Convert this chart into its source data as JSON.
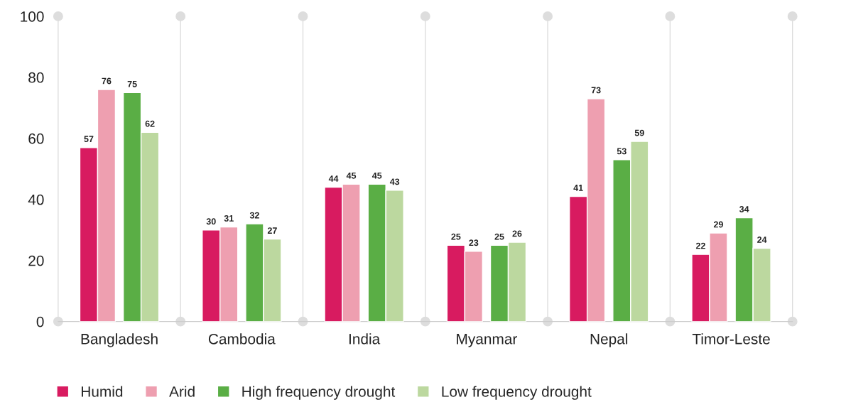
{
  "chart_data": {
    "type": "bar",
    "categories": [
      "Bangladesh",
      "Cambodia",
      "India",
      "Myanmar",
      "Nepal",
      "Timor-Leste"
    ],
    "series": [
      {
        "name": "Humid",
        "color": "#d81b60",
        "values": [
          57,
          30,
          44,
          25,
          41,
          22
        ]
      },
      {
        "name": "Arid",
        "color": "#ee9fb0",
        "values": [
          76,
          31,
          45,
          23,
          73,
          29
        ]
      },
      {
        "name": "High frequency drought",
        "color": "#5aae45",
        "values": [
          75,
          32,
          45,
          25,
          53,
          34
        ]
      },
      {
        "name": "Low frequency drought",
        "color": "#bcd89f",
        "values": [
          62,
          27,
          43,
          26,
          59,
          24
        ]
      }
    ],
    "ylim": [
      0,
      100
    ],
    "yticks": [
      0,
      20,
      40,
      60,
      80,
      100
    ],
    "data_labels": true,
    "grid": false,
    "legend": "bottom"
  }
}
